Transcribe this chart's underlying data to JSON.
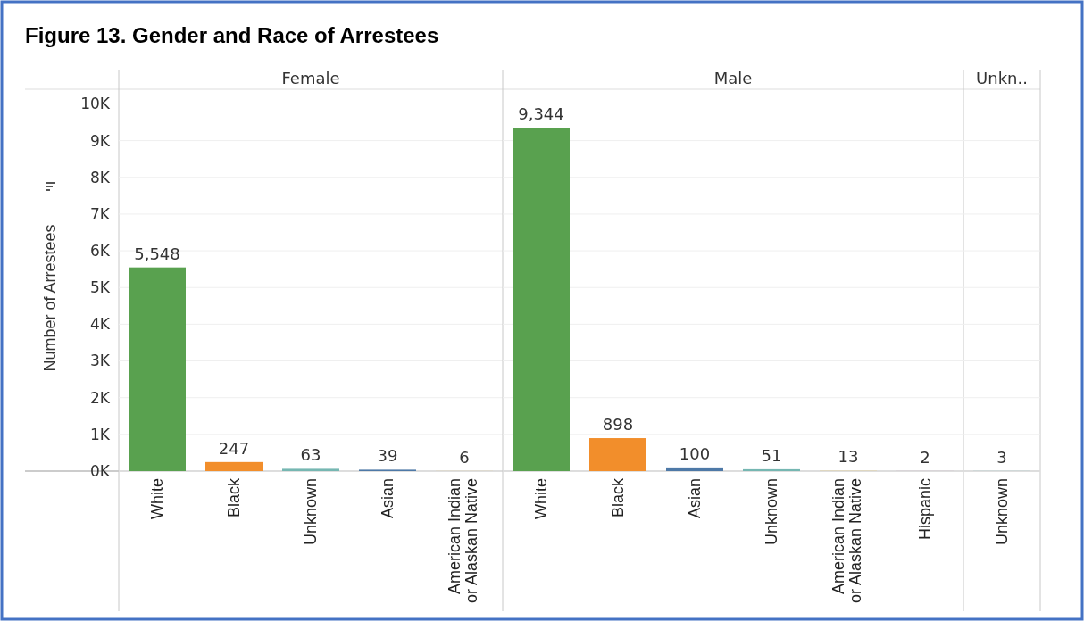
{
  "chart_data": [
    {
      "type": "bar",
      "title": "Figure 13. Gender and Race of Arrestees",
      "subtitle": "Female",
      "ylabel": "Number of Arrestees",
      "categories": [
        "White",
        "Black",
        "Unknown",
        "Asian",
        "American Indian or Alaskan Native"
      ],
      "values": [
        5548,
        247,
        63,
        39,
        6
      ],
      "colors": [
        "#59a14f",
        "#f28e2b",
        "#76b7b2",
        "#4e79a7",
        "#e2d3a8"
      ],
      "value_labels": [
        "5,548",
        "247",
        "63",
        "39",
        "6"
      ],
      "grid": "y",
      "ylim": [
        0,
        10400
      ],
      "yticks": [
        {
          "value": 0,
          "label": "0K"
        },
        {
          "value": 1000,
          "label": "1K"
        },
        {
          "value": 2000,
          "label": "2K"
        },
        {
          "value": 3000,
          "label": "3K"
        },
        {
          "value": 4000,
          "label": "4K"
        },
        {
          "value": 5000,
          "label": "5K"
        },
        {
          "value": 6000,
          "label": "6K"
        },
        {
          "value": 7000,
          "label": "7K"
        },
        {
          "value": 8000,
          "label": "8K"
        },
        {
          "value": 9000,
          "label": "9K"
        },
        {
          "value": 10000,
          "label": "10K"
        }
      ]
    },
    {
      "type": "bar",
      "subtitle": "Male",
      "categories": [
        "White",
        "Black",
        "Asian",
        "Unknown",
        "American Indian or Alaskan Native",
        "Hispanic"
      ],
      "values": [
        9344,
        898,
        100,
        51,
        13,
        2
      ],
      "colors": [
        "#59a14f",
        "#f28e2b",
        "#4e79a7",
        "#76b7b2",
        "#e2d3a8",
        "#b07aa1"
      ],
      "value_labels": [
        "9,344",
        "898",
        "100",
        "51",
        "13",
        "2"
      ],
      "grid": "y",
      "tick_labels": "x",
      "ylim": [
        0,
        10400
      ],
      "yticks": [
        0,
        1000,
        2000,
        3000,
        4000,
        5000,
        6000,
        7000,
        8000,
        9000,
        10000
      ]
    },
    {
      "type": "bar",
      "subtitle": "Unkn..",
      "categories": [
        "Unknown"
      ],
      "values": [
        3
      ],
      "colors": [
        "#76b7b2"
      ],
      "value_labels": [
        "3"
      ],
      "grid": "y",
      "tick_labels": "x",
      "ylim": [
        0,
        10400
      ],
      "yticks": [
        0,
        1000,
        2000,
        3000,
        4000,
        5000,
        6000,
        7000,
        8000,
        9000,
        10000
      ]
    }
  ]
}
